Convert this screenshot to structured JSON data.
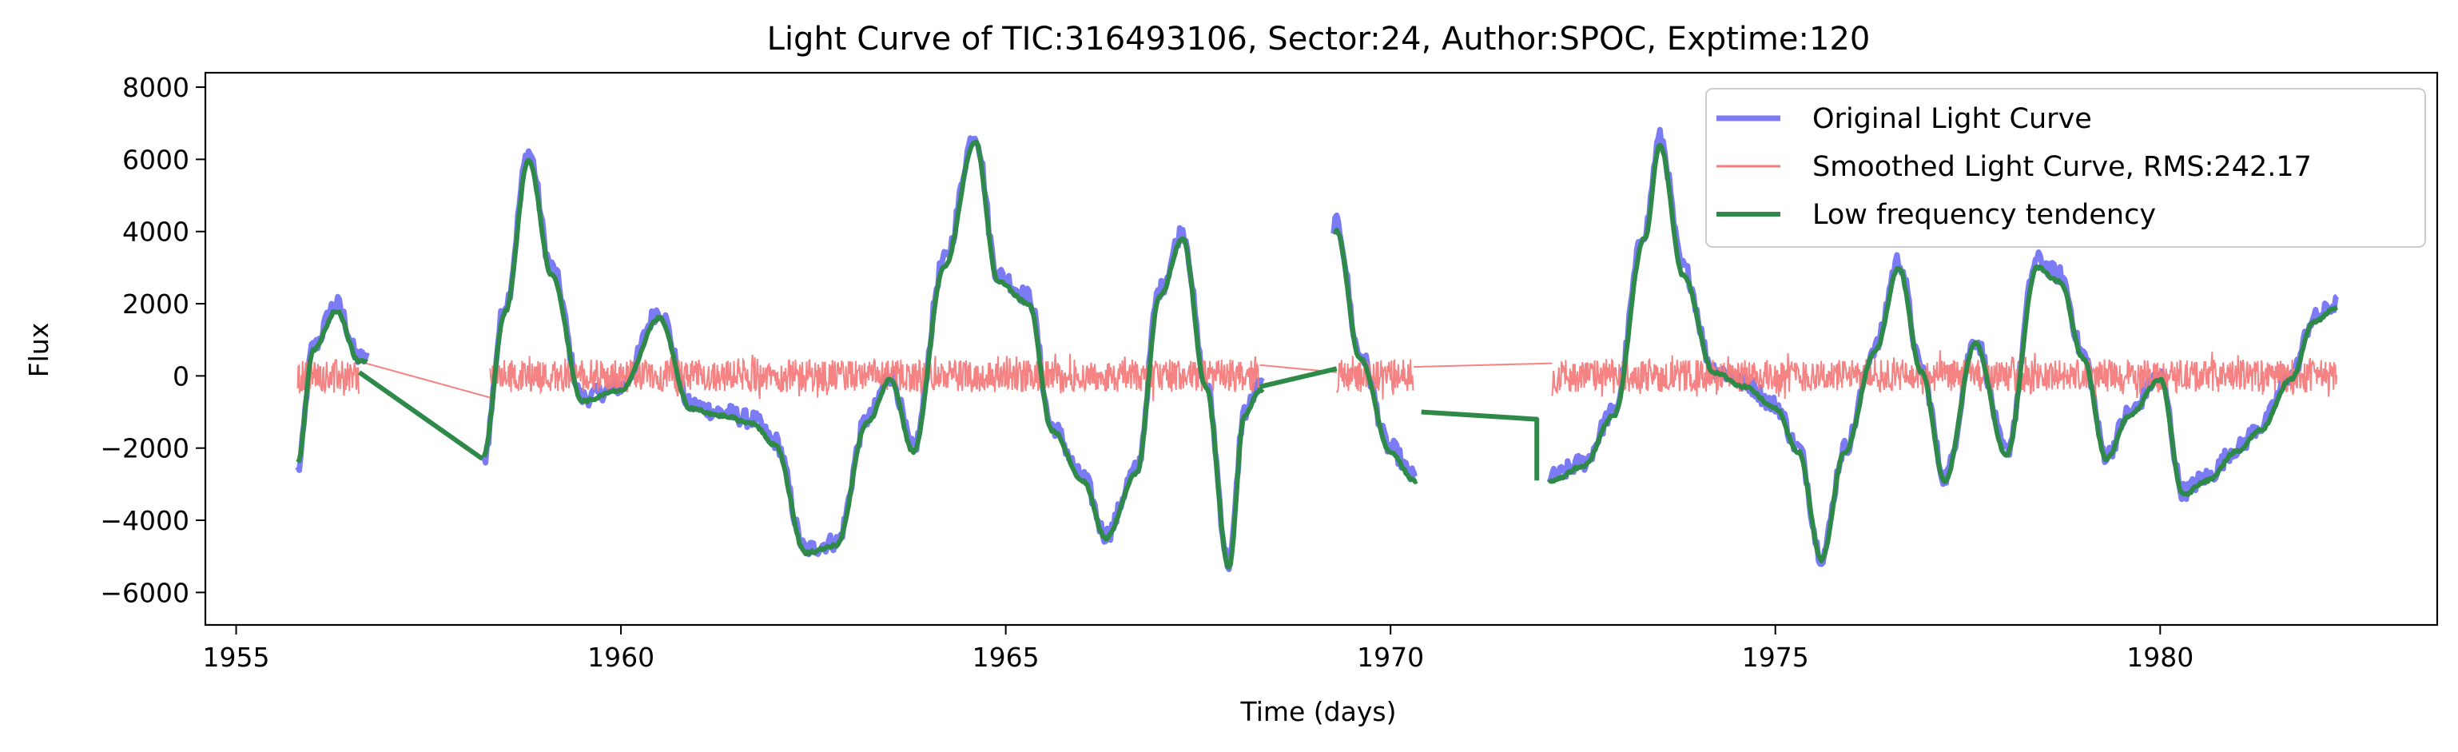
{
  "chart_data": {
    "type": "line",
    "title": "Light Curve of TIC:316493106, Sector:24, Author:SPOC, Exptime:120",
    "xlabel": "Time (days)",
    "ylabel": "Flux",
    "xlim": [
      1954.6,
      1983.6
    ],
    "ylim": [
      -6900,
      8400
    ],
    "xticks": [
      1955,
      1960,
      1965,
      1970,
      1975,
      1980
    ],
    "yticks": [
      -6000,
      -4000,
      -2000,
      0,
      2000,
      4000,
      6000,
      8000
    ],
    "grid": false,
    "legend_position": "top-right",
    "colors": {
      "original": "#7b7bf5",
      "smoothed": "#f47c7c",
      "trend": "#2f8a4a"
    },
    "series": [
      {
        "name": "Original Light Curve",
        "style": "line",
        "x": [
          1955.8,
          1956.0,
          1956.3,
          1956.6,
          1957.0,
          1957.5,
          1958.2,
          1958.5,
          1958.8,
          1959.1,
          1959.5,
          1960.0,
          1960.5,
          1960.9,
          1961.3,
          1961.7,
          1962.0,
          1962.4,
          1962.8,
          1963.2,
          1963.5,
          1963.8,
          1964.2,
          1964.6,
          1964.9,
          1965.3,
          1965.6,
          1966.0,
          1966.3,
          1966.7,
          1967.0,
          1967.3,
          1967.6,
          1967.9,
          1968.1,
          1968.3,
          1969.3,
          1969.6,
          1970.0,
          1970.3,
          1972.1,
          1972.5,
          1972.9,
          1973.3,
          1973.5,
          1973.8,
          1974.2,
          1974.6,
          1975.0,
          1975.3,
          1975.6,
          1975.9,
          1976.3,
          1976.6,
          1976.9,
          1977.2,
          1977.6,
          1978.0,
          1978.4,
          1978.7,
          1979.0,
          1979.3,
          1979.6,
          1980.0,
          1980.3,
          1980.6,
          1981.0,
          1981.3,
          1981.7,
          1982.0,
          1982.3
        ],
        "y": [
          -2600,
          800,
          2000,
          500,
          300,
          -100,
          -2400,
          2000,
          6200,
          3000,
          -600,
          -300,
          1800,
          -800,
          -1000,
          -1200,
          -1800,
          -4800,
          -4600,
          -1200,
          0,
          -2000,
          3200,
          6700,
          2800,
          2200,
          -1400,
          -2800,
          -4400,
          -2600,
          2400,
          4000,
          -200,
          -5200,
          -1000,
          -300,
          4200,
          600,
          -2000,
          -2800,
          -2800,
          -2400,
          -1000,
          4000,
          6600,
          3000,
          200,
          -200,
          -800,
          -2000,
          -5000,
          -2000,
          800,
          3200,
          200,
          -2800,
          1000,
          -2100,
          3200,
          2800,
          600,
          -2200,
          -1000,
          0,
          -3200,
          -2800,
          -2000,
          -1400,
          0,
          1600,
          2000
        ]
      },
      {
        "name": "Smoothed Light Curve, RMS:242.17",
        "style": "noise",
        "segments": [
          [
            1955.8,
            1956.6
          ],
          [
            1958.3,
            1968.3
          ],
          [
            1969.3,
            1970.3
          ],
          [
            1972.1,
            1982.3
          ]
        ],
        "connectors": [
          [
            1956.6,
            400,
            1958.3,
            -600
          ],
          [
            1968.3,
            300,
            1969.3,
            100
          ],
          [
            1970.3,
            250,
            1972.1,
            350
          ]
        ],
        "amplitude": 900
      },
      {
        "name": "Low frequency tendency",
        "style": "line",
        "x": [
          1955.8,
          1956.0,
          1956.3,
          1956.6,
          1957.0,
          1957.5,
          1958.2,
          1958.5,
          1958.8,
          1959.1,
          1959.5,
          1960.0,
          1960.5,
          1960.9,
          1961.3,
          1961.7,
          1962.0,
          1962.4,
          1962.8,
          1963.2,
          1963.5,
          1963.8,
          1964.2,
          1964.6,
          1964.9,
          1965.3,
          1965.6,
          1966.0,
          1966.3,
          1966.7,
          1967.0,
          1967.3,
          1967.6,
          1967.9,
          1968.1,
          1968.3,
          1969.3,
          1969.6,
          1970.0,
          1970.3,
          1972.1,
          1972.5,
          1972.9,
          1973.3,
          1973.5,
          1973.8,
          1974.2,
          1974.6,
          1975.0,
          1975.3,
          1975.6,
          1975.9,
          1976.3,
          1976.6,
          1976.9,
          1977.2,
          1977.6,
          1978.0,
          1978.4,
          1978.7,
          1979.0,
          1979.3,
          1979.6,
          1980.0,
          1980.3,
          1980.6,
          1981.0,
          1981.3,
          1981.7,
          1982.0,
          1982.3
        ],
        "y": [
          -2400,
          700,
          1800,
          400,
          200,
          -200,
          -2300,
          1800,
          6000,
          2800,
          -700,
          -400,
          1600,
          -900,
          -1100,
          -1300,
          -1900,
          -4900,
          -4700,
          -1300,
          -100,
          -2100,
          3000,
          6500,
          2600,
          2000,
          -1500,
          -2900,
          -4500,
          -2700,
          2200,
          3800,
          -300,
          -5300,
          -1100,
          -400,
          4000,
          500,
          -2100,
          -2900,
          -2900,
          -2500,
          -1100,
          3800,
          6400,
          2800,
          100,
          -300,
          -900,
          -2100,
          -5100,
          -2100,
          700,
          3000,
          100,
          -2900,
          900,
          -2200,
          3000,
          2600,
          500,
          -2300,
          -1100,
          -100,
          -3300,
          -2900,
          -2100,
          -1500,
          -100,
          1500,
          1900
        ]
      }
    ]
  }
}
